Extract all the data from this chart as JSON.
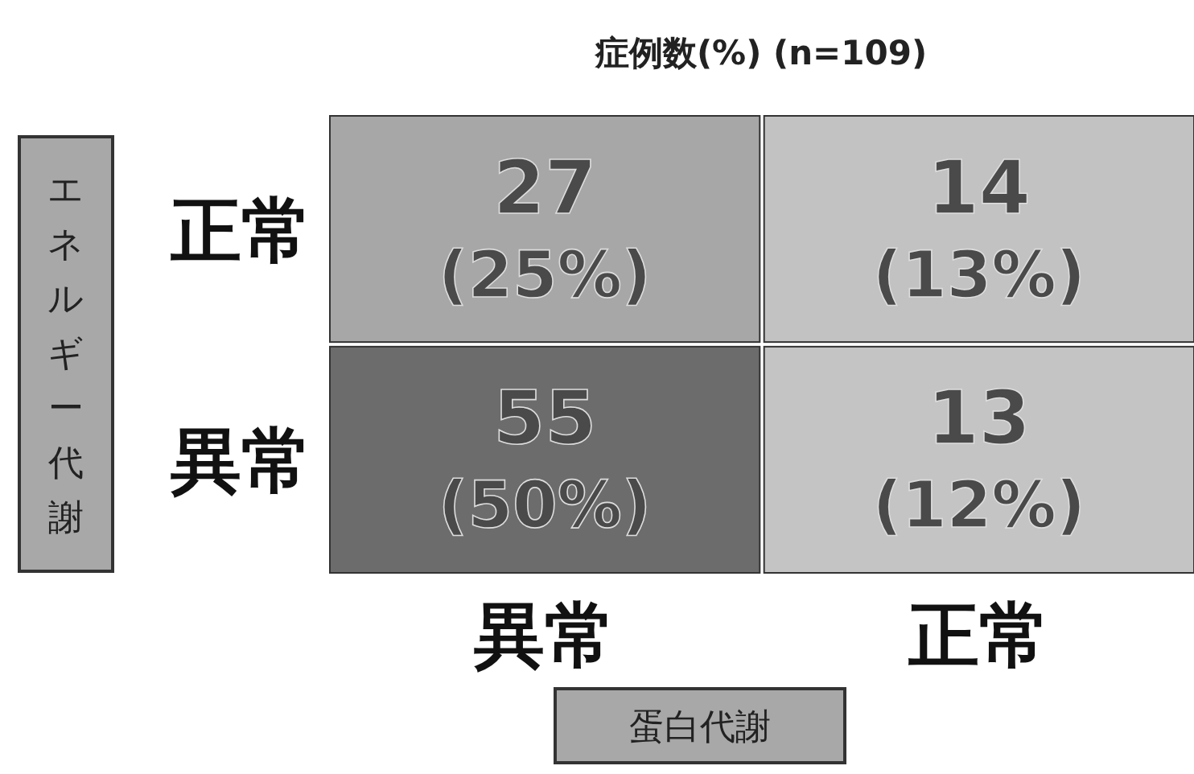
{
  "chart_data": {
    "type": "heatmap",
    "title": "症例数(%)  (n=109)",
    "xlabel": "蛋白代謝",
    "ylabel": "エネルギー代謝",
    "categories": [
      "異常",
      "正常"
    ],
    "y_categories": [
      "正常",
      "異常"
    ],
    "cells": [
      [
        27,
        14
      ],
      [
        55,
        13
      ]
    ],
    "data_labels": true,
    "annotations": [
      "(25%)",
      "(13%)",
      "(50%)",
      "(12%)"
    ]
  }
}
